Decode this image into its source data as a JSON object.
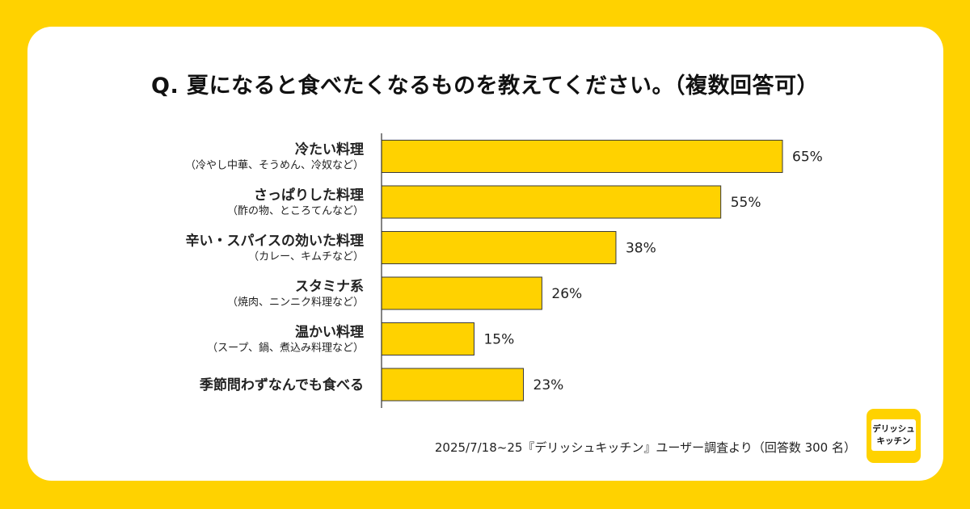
{
  "title": "Q. 夏になると食べたくなるものを教えてください。（複数回答可）",
  "footnote": "2025/7/18~25『デリッシュキッチン』ユーザー調査より（回答数 300 名）",
  "logo": {
    "line1": "デリッシュ",
    "line2": "キッチン"
  },
  "colors": {
    "background": "#FFD200",
    "bar": "#FFD200",
    "bar_border": "#3a3a3a",
    "card": "#FFFFFF"
  },
  "chart_data": {
    "type": "bar",
    "orientation": "horizontal",
    "categories": [
      {
        "label": "冷たい料理",
        "sublabel": "（冷やし中華、そうめん、冷奴など）",
        "value": 65,
        "value_label": "65%"
      },
      {
        "label": "さっぱりした料理",
        "sublabel": "（酢の物、ところてんなど）",
        "value": 55,
        "value_label": "55%"
      },
      {
        "label": "辛い・スパイスの効いた料理",
        "sublabel": "（カレー、キムチなど）",
        "value": 38,
        "value_label": "38%"
      },
      {
        "label": "スタミナ系",
        "sublabel": "（焼肉、ニンニク料理など）",
        "value": 26,
        "value_label": "26%"
      },
      {
        "label": "温かい料理",
        "sublabel": "（スープ、鍋、煮込み料理など）",
        "value": 15,
        "value_label": "15%"
      },
      {
        "label": "季節問わずなんでも食べる",
        "sublabel": "",
        "value": 23,
        "value_label": "23%"
      }
    ],
    "xlim": [
      0,
      100
    ],
    "grid": false,
    "legend": "none"
  }
}
